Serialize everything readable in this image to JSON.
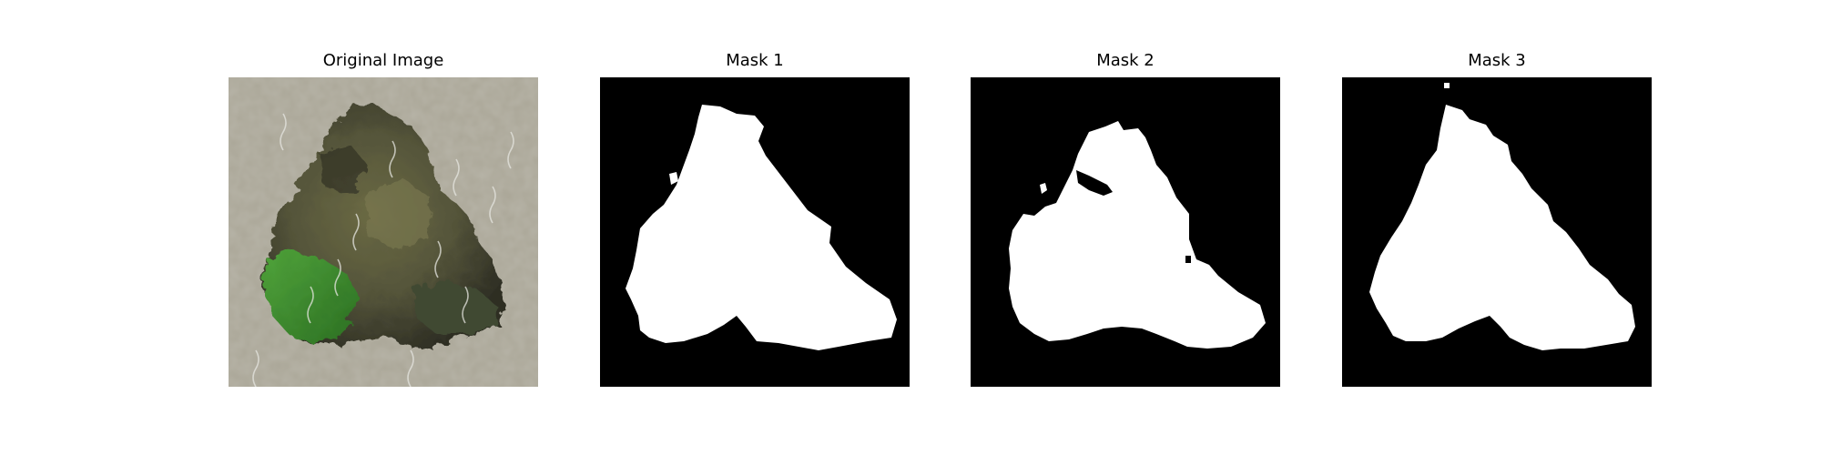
{
  "figure": {
    "panels": [
      {
        "title": "Original Image",
        "image": "photo of a dark green leafy blob on a pale textured surface"
      },
      {
        "title": "Mask 1",
        "image": "binary segmentation mask (white region on black)"
      },
      {
        "title": "Mask 2",
        "image": "binary segmentation mask (white region on black)"
      },
      {
        "title": "Mask 3",
        "image": "binary segmentation mask (white region on black)"
      }
    ]
  },
  "colors": {
    "figure_background": "#ffffff",
    "mask_background": "#000000",
    "mask_foreground": "#ffffff",
    "texture_background": "#a9a596",
    "blob_dark": "#3f3d2b",
    "blob_olive": "#6b6a44",
    "blob_green": "#3c8a2c"
  }
}
